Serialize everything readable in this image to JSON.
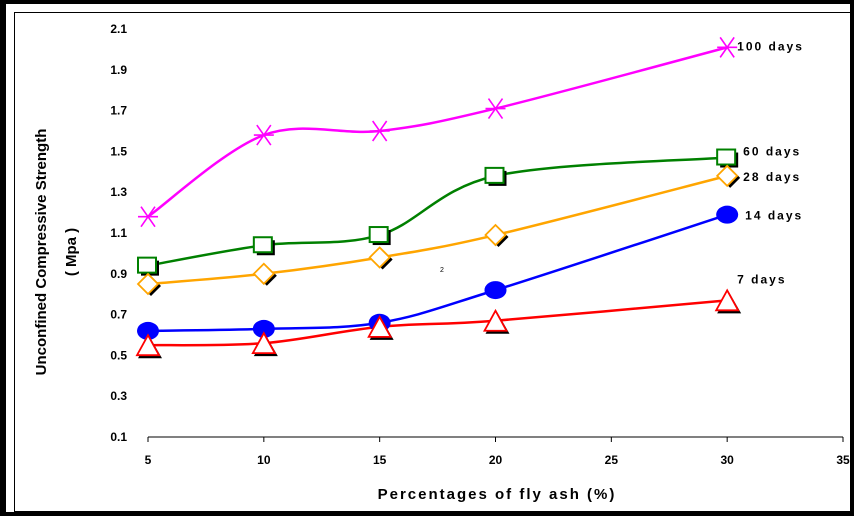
{
  "chart_data": {
    "type": "line",
    "xlabel": "Percentages of fly ash (%)",
    "ylabel_line1": "Unconfined Compressive Strength",
    "ylabel_line2": "( Mpa )",
    "xlim": [
      5,
      35
    ],
    "ylim": [
      0.1,
      2.1
    ],
    "x_ticks": [
      "5",
      "10",
      "15",
      "20",
      "25",
      "30",
      "35"
    ],
    "y_ticks": [
      "2.1",
      "1.9",
      "1.7",
      "1.5",
      "1.3",
      "1.1",
      "0.9",
      "0.7",
      "0.5",
      "0.3",
      "0.1"
    ],
    "x": [
      5,
      10,
      15,
      20,
      30
    ],
    "stray_text": "2",
    "series": [
      {
        "name": "100 days",
        "values": [
          1.18,
          1.58,
          1.6,
          1.71,
          2.01
        ],
        "color": "#ff00ff",
        "marker": "asterisk"
      },
      {
        "name": "60 days",
        "values": [
          0.94,
          1.04,
          1.09,
          1.38,
          1.47
        ],
        "color": "#008000",
        "marker": "square"
      },
      {
        "name": "28 days",
        "values": [
          0.85,
          0.9,
          0.98,
          1.09,
          1.38
        ],
        "color": "#ffa500",
        "marker": "diamond"
      },
      {
        "name": "14 days",
        "values": [
          0.62,
          0.63,
          0.66,
          0.82,
          1.19
        ],
        "color": "#0000ff",
        "marker": "circle"
      },
      {
        "name": "7 days",
        "values": [
          0.55,
          0.56,
          0.64,
          0.67,
          0.77
        ],
        "color": "#ff0000",
        "marker": "triangle"
      }
    ]
  }
}
